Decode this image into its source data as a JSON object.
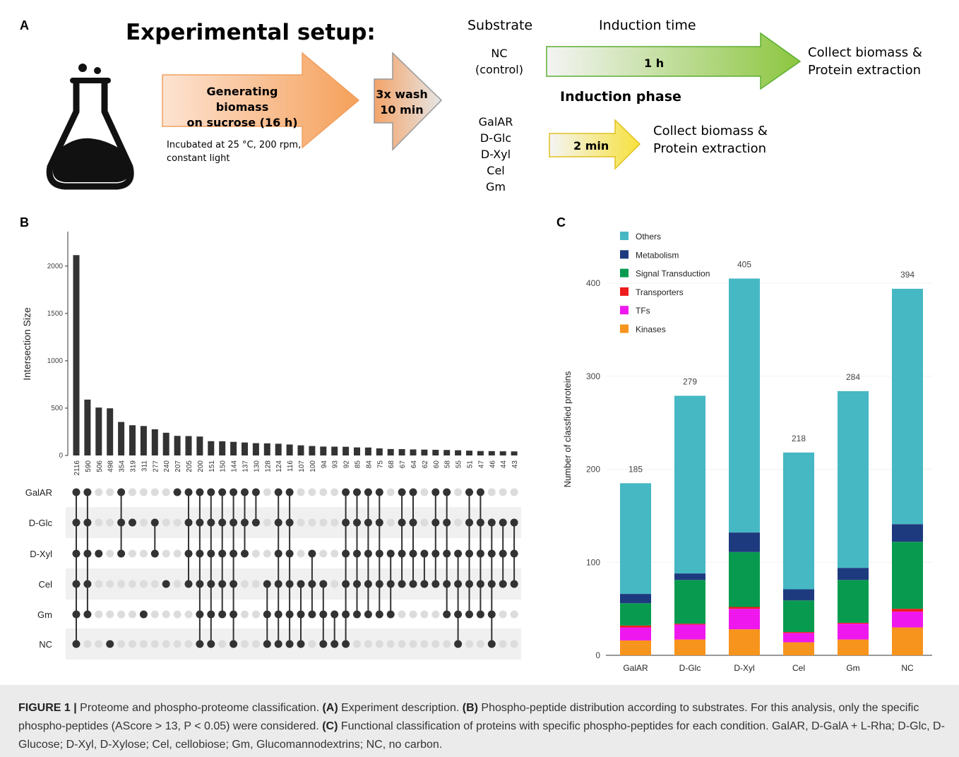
{
  "panel_a": {
    "label": "A",
    "title": "Experimental setup:",
    "arrow1_text": [
      "Generating biomass",
      "on sucrose (16 h)"
    ],
    "incubation_note": [
      "Incubated at 25 °C, 200 rpm,",
      "constant light"
    ],
    "wash_text": [
      "3x wash",
      "10 min"
    ],
    "substrate_header": "Substrate",
    "induction_time_header": "Induction time",
    "nc_lines": [
      "NC",
      "(control)"
    ],
    "substrates": [
      "GalAR",
      "D-Glc",
      "D-Xyl",
      "Cel",
      "Gm"
    ],
    "nc_time": "1 h",
    "sub_time": "2 min",
    "collect_lines": [
      "Collect biomass &",
      "Protein extraction"
    ],
    "induction_phase": "Induction phase",
    "colors": {
      "orange": "#f5a05a",
      "green": "#8cc63f",
      "yellow": "#f7e13c"
    }
  },
  "panel_b": {
    "label": "B",
    "chart_data": {
      "type": "bar",
      "ylabel": "Intersection Size",
      "yticks": [
        0,
        500,
        1000,
        1500,
        2000
      ],
      "ylim": [
        0,
        2200
      ],
      "sets": [
        "GalAR",
        "D-Glc",
        "D-Xyl",
        "Cel",
        "Gm",
        "NC"
      ],
      "intersections": [
        {
          "size": 2116,
          "members": [
            0,
            1,
            2,
            3,
            4,
            5
          ]
        },
        {
          "size": 590,
          "members": [
            0,
            1,
            2,
            3,
            4
          ]
        },
        {
          "size": 506,
          "members": [
            2
          ]
        },
        {
          "size": 498,
          "members": [
            5
          ]
        },
        {
          "size": 354,
          "members": [
            0,
            1,
            2
          ]
        },
        {
          "size": 319,
          "members": [
            1
          ]
        },
        {
          "size": 311,
          "members": [
            4
          ]
        },
        {
          "size": 277,
          "members": [
            1,
            2
          ]
        },
        {
          "size": 240,
          "members": [
            3
          ]
        },
        {
          "size": 207,
          "members": [
            0
          ]
        },
        {
          "size": 205,
          "members": [
            0,
            1,
            2,
            3
          ]
        },
        {
          "size": 200,
          "members": [
            0,
            1,
            2,
            3,
            4,
            5
          ]
        },
        {
          "size": 151,
          "members": [
            0,
            1,
            2,
            3,
            4,
            5
          ]
        },
        {
          "size": 150,
          "members": [
            0,
            1,
            2,
            3,
            4
          ]
        },
        {
          "size": 144,
          "members": [
            0,
            1,
            2,
            3,
            4,
            5
          ]
        },
        {
          "size": 137,
          "members": [
            0,
            1,
            2
          ]
        },
        {
          "size": 130,
          "members": [
            0,
            1
          ]
        },
        {
          "size": 128,
          "members": [
            3,
            4,
            5
          ]
        },
        {
          "size": 124,
          "members": [
            0,
            1,
            2,
            3,
            4,
            5
          ]
        },
        {
          "size": 116,
          "members": [
            0,
            1,
            2,
            3,
            4,
            5
          ]
        },
        {
          "size": 107,
          "members": [
            3,
            4,
            5
          ]
        },
        {
          "size": 100,
          "members": [
            2,
            3,
            4
          ]
        },
        {
          "size": 94,
          "members": [
            3,
            4,
            5
          ]
        },
        {
          "size": 93,
          "members": [
            4,
            5
          ]
        },
        {
          "size": 92,
          "members": [
            0,
            1,
            2,
            3,
            4,
            5
          ]
        },
        {
          "size": 85,
          "members": [
            0,
            1,
            2,
            3,
            4
          ]
        },
        {
          "size": 84,
          "members": [
            0,
            1,
            2,
            3,
            4
          ]
        },
        {
          "size": 75,
          "members": [
            0,
            1,
            2,
            3,
            4
          ]
        },
        {
          "size": 68,
          "members": [
            2,
            3,
            4
          ]
        },
        {
          "size": 67,
          "members": [
            0,
            1,
            2,
            3
          ]
        },
        {
          "size": 64,
          "members": [
            0,
            1,
            2,
            3
          ]
        },
        {
          "size": 62,
          "members": [
            2,
            3
          ]
        },
        {
          "size": 60,
          "members": [
            0,
            1,
            2,
            3
          ]
        },
        {
          "size": 58,
          "members": [
            0,
            1,
            2,
            3,
            4
          ]
        },
        {
          "size": 55,
          "members": [
            2,
            3,
            4,
            5
          ]
        },
        {
          "size": 51,
          "members": [
            0,
            1,
            2,
            3,
            4
          ]
        },
        {
          "size": 47,
          "members": [
            0,
            1,
            2,
            3,
            4
          ]
        },
        {
          "size": 46,
          "members": [
            1,
            2,
            3,
            4,
            5
          ]
        },
        {
          "size": 44,
          "members": [
            1,
            2,
            3
          ]
        },
        {
          "size": 43,
          "members": [
            1,
            2,
            3
          ]
        }
      ]
    }
  },
  "panel_c": {
    "label": "C",
    "chart_data": {
      "type": "bar",
      "stacked": true,
      "ylabel": "Number of classfied proteins",
      "yticks": [
        0,
        100,
        200,
        300,
        400
      ],
      "ylim": [
        0,
        460
      ],
      "categories": [
        "GalAR",
        "D-Glc",
        "D-Xyl",
        "Cel",
        "Gm",
        "NC"
      ],
      "totals": [
        185,
        279,
        405,
        218,
        284,
        394
      ],
      "legend": [
        "Others",
        "Metabolism",
        "Signal Transduction",
        "Transporters",
        "TFs",
        "Kinases"
      ],
      "legend_colors": [
        "#46b8c4",
        "#1e3a7e",
        "#089b4f",
        "#ee1c1c",
        "#ee18ee",
        "#f7941d"
      ],
      "series": [
        {
          "name": "Kinases",
          "values": [
            16,
            17,
            28,
            14,
            17,
            30
          ]
        },
        {
          "name": "TFs",
          "values": [
            14,
            16,
            22,
            10,
            17,
            17
          ]
        },
        {
          "name": "Transporters",
          "values": [
            2,
            1,
            2,
            1,
            1,
            3
          ]
        },
        {
          "name": "Signal Transduction",
          "values": [
            24,
            47,
            59,
            34,
            46,
            72
          ]
        },
        {
          "name": "Metabolism",
          "values": [
            10,
            7,
            21,
            12,
            13,
            19
          ]
        },
        {
          "name": "Others",
          "values": [
            119,
            191,
            273,
            147,
            190,
            253
          ]
        }
      ]
    }
  },
  "caption": {
    "label": "FIGURE 1 |",
    "text1": " Proteome and phospho-proteome classification. ",
    "a_label": "(A)",
    "a_text": " Experiment description. ",
    "b_label": "(B)",
    "b_text": " Phospho-peptide distribution according to substrates. For this analysis, only the specific phospho-peptides (AScore > 13, P < 0.05) were considered. ",
    "c_label": "(C)",
    "c_text": " Functional classification of proteins with specific phospho-peptides for each condition. GalAR, D-GalA + L-Rha; D-Glc, D-Glucose; D-Xyl, D-Xylose; Cel, cellobiose; Gm, Glucomannodextrins; NC, no carbon."
  }
}
